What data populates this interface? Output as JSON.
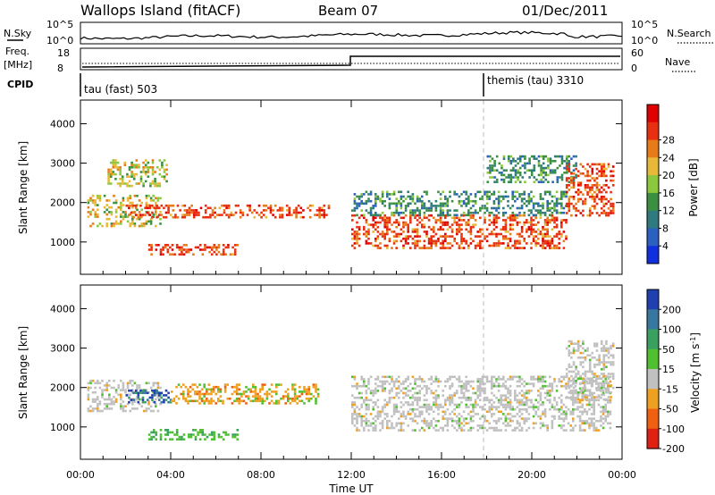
{
  "header": {
    "station": "Wallops Island (fitACF)",
    "beam": "Beam 07",
    "date": "01/Dec/2011"
  },
  "strips": {
    "nsky_label": "N.Sky",
    "nsearch_label": "N.Search",
    "nsky_ticks": [
      "10^5",
      "10^0"
    ],
    "nsearch_ticks": [
      "10^5",
      "10^0"
    ],
    "freq_label": "Freq.",
    "freq_unit": "[MHz]",
    "freq_ticks": [
      "18",
      "8"
    ],
    "nave_label": "Nave",
    "nave_ticks": [
      "60",
      "0"
    ],
    "cpid_label": "CPID",
    "cpid_segments": [
      {
        "text": "tau (fast) 503",
        "start_hour": 0
      },
      {
        "text": "themis (tau) 3310",
        "start_hour": 18
      }
    ]
  },
  "chart_data": [
    {
      "type": "heatmap",
      "title": "",
      "xlabel": "",
      "ylabel": "Slant Range [km]",
      "x_range_hours": [
        0,
        24
      ],
      "ylim": [
        180,
        4600
      ],
      "y_ticks": [
        "1000",
        "2000",
        "3000",
        "4000"
      ],
      "colorbar": {
        "label": "Power [dB]",
        "ticks": [
          "4",
          "8",
          "12",
          "16",
          "20",
          "24",
          "28"
        ],
        "colors": [
          "#1030e0",
          "#2a60c0",
          "#2e7a7e",
          "#3a9040",
          "#8cc83c",
          "#e8b838",
          "#e87a18",
          "#e83010",
          "#e00000"
        ]
      },
      "echo_bands": [
        {
          "start_hour": 0.3,
          "end_hour": 3.5,
          "range_km": [
            1400,
            2200
          ],
          "level": "mid"
        },
        {
          "start_hour": 1.2,
          "end_hour": 3.8,
          "range_km": [
            2400,
            3100
          ],
          "level": "mid"
        },
        {
          "start_hour": 2.0,
          "end_hour": 11.0,
          "range_km": [
            1600,
            1950
          ],
          "level": "high"
        },
        {
          "start_hour": 3.0,
          "end_hour": 7.0,
          "range_km": [
            700,
            950
          ],
          "level": "high"
        },
        {
          "start_hour": 12.0,
          "end_hour": 21.5,
          "range_km": [
            850,
            1700
          ],
          "level": "high"
        },
        {
          "start_hour": 12.0,
          "end_hour": 21.5,
          "range_km": [
            1700,
            2300
          ],
          "level": "low"
        },
        {
          "start_hour": 18.0,
          "end_hour": 22.0,
          "range_km": [
            2500,
            3200
          ],
          "level": "low"
        },
        {
          "start_hour": 21.5,
          "end_hour": 23.6,
          "range_km": [
            1700,
            3000
          ],
          "level": "high"
        }
      ]
    },
    {
      "type": "heatmap",
      "title": "",
      "xlabel": "Time UT",
      "ylabel": "Slant Range [km]",
      "x_range_hours": [
        0,
        24
      ],
      "ylim": [
        180,
        4600
      ],
      "x_ticks": [
        "00:00",
        "04:00",
        "08:00",
        "12:00",
        "16:00",
        "20:00",
        "00:00"
      ],
      "y_ticks": [
        "1000",
        "2000",
        "3000",
        "4000"
      ],
      "colorbar": {
        "label": "Velocity [m s-1]",
        "ticks": [
          "200",
          "100",
          "50",
          "15",
          "-15",
          "-50",
          "-100",
          "-200"
        ],
        "colors": [
          "#2040b0",
          "#3878a0",
          "#3aa060",
          "#50c030",
          "#c0c0c0",
          "#f0a020",
          "#f06010",
          "#e02010"
        ]
      },
      "echo_bands": [
        {
          "start_hour": 0.3,
          "end_hour": 3.5,
          "range_km": [
            1400,
            2200
          ],
          "velocity": "ground"
        },
        {
          "start_hour": 2.0,
          "end_hour": 4.0,
          "range_km": [
            1600,
            1950
          ],
          "velocity": "toward 100-200"
        },
        {
          "start_hour": 4.0,
          "end_hour": 10.5,
          "range_km": [
            1600,
            2100
          ],
          "velocity": "away 50-100"
        },
        {
          "start_hour": 3.0,
          "end_hour": 7.0,
          "range_km": [
            700,
            950
          ],
          "velocity": "toward 15-50"
        },
        {
          "start_hour": 12.0,
          "end_hour": 23.5,
          "range_km": [
            900,
            2300
          ],
          "velocity": "ground"
        },
        {
          "start_hour": 21.5,
          "end_hour": 23.6,
          "range_km": [
            1700,
            3200
          ],
          "velocity": "ground"
        }
      ]
    }
  ]
}
